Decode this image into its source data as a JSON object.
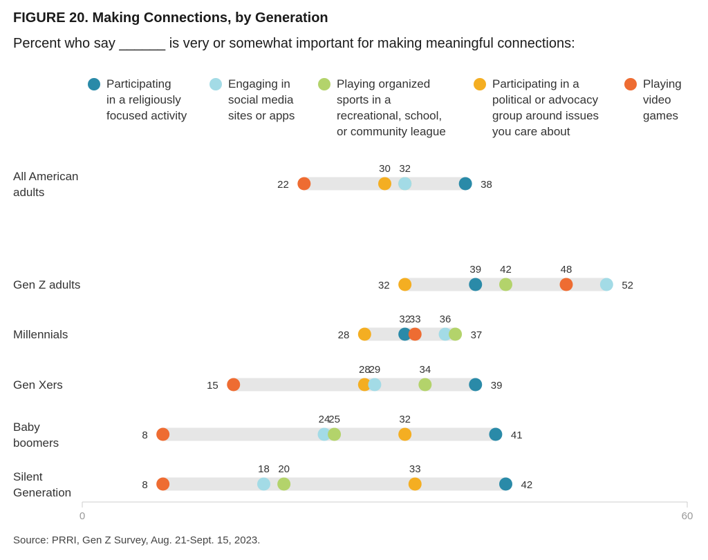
{
  "chart_data": {
    "type": "dot",
    "title": "FIGURE 20. Making Connections, by Generation",
    "subtitle": "Percent who say ______ is very or somewhat important for making meaningful connections:",
    "source": "Source: PRRI, Gen Z Survey, Aug. 21-Sept. 15, 2023.",
    "xlim": [
      0,
      60
    ],
    "xticks": [
      "0",
      "60"
    ],
    "legend_position": "top",
    "series": [
      {
        "key": "religious",
        "name": "Participating\nin a religiously\nfocused activity",
        "color": "#2a8aa8"
      },
      {
        "key": "social",
        "name": "Engaging in\nsocial media\nsites or apps",
        "color": "#a3dbe6"
      },
      {
        "key": "sports",
        "name": "Playing organized\nsports in a\nrecreational, school,\nor community league",
        "color": "#b3d36b"
      },
      {
        "key": "political",
        "name": "Participating in a\npolitical or advocacy\ngroup around issues\nyou care about",
        "color": "#f4ae22"
      },
      {
        "key": "games",
        "name": "Playing\nvideo\ngames",
        "color": "#ee6c32"
      }
    ],
    "categories": [
      {
        "label": "All American\nadults",
        "values": {
          "religious": 38,
          "social": 32,
          "sports": 32,
          "political": 30,
          "games": 22
        }
      },
      {
        "label": "Gen Z adults",
        "values": {
          "religious": 39,
          "social": 52,
          "sports": 42,
          "political": 32,
          "games": 48
        }
      },
      {
        "label": "Millennials",
        "values": {
          "religious": 32,
          "social": 36,
          "sports": 37,
          "political": 28,
          "games": 33
        }
      },
      {
        "label": "Gen Xers",
        "values": {
          "religious": 39,
          "social": 29,
          "sports": 34,
          "political": 28,
          "games": 15
        }
      },
      {
        "label": "Baby\nboomers",
        "values": {
          "religious": 41,
          "social": 24,
          "sports": 25,
          "political": 32,
          "games": 8
        }
      },
      {
        "label": "Silent\nGeneration",
        "values": {
          "religious": 42,
          "social": 18,
          "sports": 20,
          "political": 33,
          "games": 8
        }
      }
    ],
    "value_labels": [
      {
        "row": 0,
        "above": [
          30,
          32
        ],
        "left": [
          22
        ],
        "right": [
          38
        ]
      },
      {
        "row": 1,
        "above": [
          39,
          42,
          48
        ],
        "left": [
          32
        ],
        "right": [
          52
        ]
      },
      {
        "row": 2,
        "above": [
          32,
          33,
          36
        ],
        "left": [
          28
        ],
        "right": [
          37
        ]
      },
      {
        "row": 3,
        "above": [
          28,
          29,
          34
        ],
        "left": [
          15
        ],
        "right": [
          39
        ]
      },
      {
        "row": 4,
        "above": [
          24,
          25,
          32
        ],
        "left": [
          8
        ],
        "right": [
          41
        ]
      },
      {
        "row": 5,
        "above": [
          18,
          20,
          33
        ],
        "left": [
          8
        ],
        "right": [
          42
        ]
      }
    ]
  }
}
